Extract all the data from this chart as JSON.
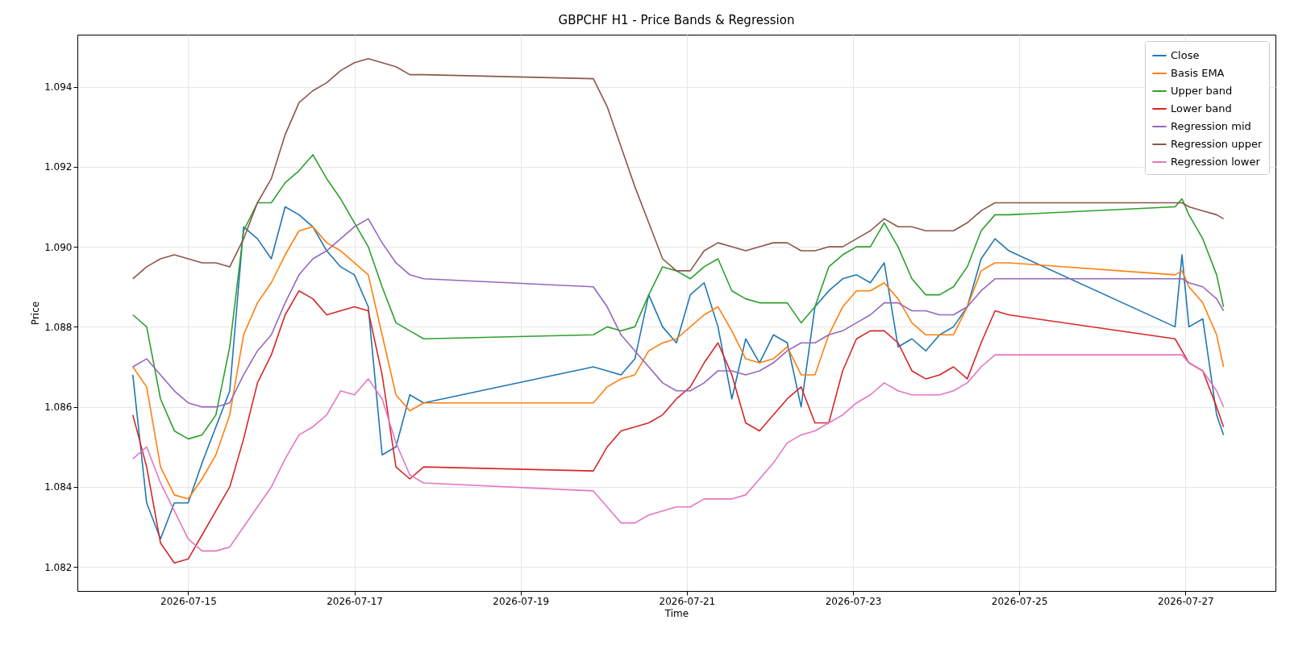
{
  "chart_data": {
    "type": "line",
    "title": "GBPCHF H1 - Price Bands & Regression",
    "xlabel": "Time",
    "ylabel": "Price",
    "x": [
      "2026-07-14T08:00",
      "2026-07-14T12:00",
      "2026-07-14T16:00",
      "2026-07-14T20:00",
      "2026-07-15T00:00",
      "2026-07-15T04:00",
      "2026-07-15T08:00",
      "2026-07-15T12:00",
      "2026-07-15T16:00",
      "2026-07-15T20:00",
      "2026-07-16T00:00",
      "2026-07-16T04:00",
      "2026-07-16T08:00",
      "2026-07-16T12:00",
      "2026-07-16T16:00",
      "2026-07-16T20:00",
      "2026-07-17T00:00",
      "2026-07-17T04:00",
      "2026-07-17T08:00",
      "2026-07-17T12:00",
      "2026-07-17T16:00",
      "2026-07-17T20:00",
      "2026-07-19T21:00",
      "2026-07-20T01:00",
      "2026-07-20T05:00",
      "2026-07-20T09:00",
      "2026-07-20T13:00",
      "2026-07-20T17:00",
      "2026-07-20T21:00",
      "2026-07-21T01:00",
      "2026-07-21T05:00",
      "2026-07-21T09:00",
      "2026-07-21T13:00",
      "2026-07-21T17:00",
      "2026-07-21T21:00",
      "2026-07-22T01:00",
      "2026-07-22T05:00",
      "2026-07-22T09:00",
      "2026-07-22T13:00",
      "2026-07-22T17:00",
      "2026-07-22T21:00",
      "2026-07-23T01:00",
      "2026-07-23T05:00",
      "2026-07-23T09:00",
      "2026-07-23T13:00",
      "2026-07-23T17:00",
      "2026-07-23T21:00",
      "2026-07-24T01:00",
      "2026-07-24T05:00",
      "2026-07-24T09:00",
      "2026-07-24T13:00",
      "2026-07-24T17:00",
      "2026-07-24T21:00",
      "2026-07-26T21:00",
      "2026-07-26T23:00",
      "2026-07-27T01:00",
      "2026-07-27T05:00",
      "2026-07-27T09:00",
      "2026-07-27T11:00"
    ],
    "series": [
      {
        "name": "Close",
        "color": "#1f77b4",
        "values": [
          1.0868,
          1.0836,
          1.0827,
          1.0836,
          1.0836,
          1.0846,
          1.0855,
          1.0864,
          1.0905,
          1.0902,
          1.0897,
          1.091,
          1.0908,
          1.0905,
          1.0899,
          1.0895,
          1.0893,
          1.0885,
          1.0848,
          1.085,
          1.0863,
          1.0861,
          1.087,
          1.0869,
          1.0868,
          1.0872,
          1.0888,
          1.088,
          1.0876,
          1.0888,
          1.0891,
          1.088,
          1.0862,
          1.0877,
          1.0871,
          1.0878,
          1.0876,
          1.086,
          1.0885,
          1.0889,
          1.0892,
          1.0893,
          1.0891,
          1.0896,
          1.0875,
          1.0877,
          1.0874,
          1.0878,
          1.088,
          1.0885,
          1.0897,
          1.0902,
          1.0899,
          1.088,
          1.0898,
          1.088,
          1.0882,
          1.0858,
          1.0853
        ]
      },
      {
        "name": "Basis EMA",
        "color": "#ff7f0e",
        "values": [
          1.087,
          1.0865,
          1.0845,
          1.0838,
          1.0837,
          1.0842,
          1.0848,
          1.0858,
          1.0878,
          1.0886,
          1.0891,
          1.0898,
          1.0904,
          1.0905,
          1.0901,
          1.0899,
          1.0896,
          1.0893,
          1.0878,
          1.0863,
          1.0859,
          1.0861,
          1.0861,
          1.0865,
          1.0867,
          1.0868,
          1.0874,
          1.0876,
          1.0877,
          1.088,
          1.0883,
          1.0885,
          1.0879,
          1.0872,
          1.0871,
          1.0872,
          1.0875,
          1.0868,
          1.0868,
          1.0878,
          1.0885,
          1.0889,
          1.0889,
          1.0891,
          1.0887,
          1.0881,
          1.0878,
          1.0878,
          1.0878,
          1.0885,
          1.0894,
          1.0896,
          1.0896,
          1.0893,
          1.0894,
          1.089,
          1.0886,
          1.0878,
          1.087
        ]
      },
      {
        "name": "Upper band",
        "color": "#2ca02c",
        "values": [
          1.0883,
          1.088,
          1.0862,
          1.0854,
          1.0852,
          1.0853,
          1.0858,
          1.0875,
          1.0904,
          1.0911,
          1.0911,
          1.0916,
          1.0919,
          1.0923,
          1.0917,
          1.0912,
          1.0906,
          1.09,
          1.089,
          1.0881,
          1.0879,
          1.0877,
          1.0878,
          1.088,
          1.0879,
          1.088,
          1.0888,
          1.0895,
          1.0894,
          1.0892,
          1.0895,
          1.0897,
          1.0889,
          1.0887,
          1.0886,
          1.0886,
          1.0886,
          1.0881,
          1.0885,
          1.0895,
          1.0898,
          1.09,
          1.09,
          1.0906,
          1.09,
          1.0892,
          1.0888,
          1.0888,
          1.089,
          1.0895,
          1.0904,
          1.0908,
          1.0908,
          1.091,
          1.0912,
          1.0908,
          1.0902,
          1.0893,
          1.0885
        ]
      },
      {
        "name": "Lower band",
        "color": "#d62728",
        "values": [
          1.0858,
          1.0845,
          1.0826,
          1.0821,
          1.0822,
          1.0828,
          1.0834,
          1.084,
          1.0852,
          1.0866,
          1.0873,
          1.0883,
          1.0889,
          1.0887,
          1.0883,
          1.0884,
          1.0885,
          1.0884,
          1.0868,
          1.0845,
          1.0842,
          1.0845,
          1.0844,
          1.085,
          1.0854,
          1.0855,
          1.0856,
          1.0858,
          1.0862,
          1.0865,
          1.0871,
          1.0876,
          1.0868,
          1.0856,
          1.0854,
          1.0858,
          1.0862,
          1.0865,
          1.0856,
          1.0856,
          1.0869,
          1.0877,
          1.0879,
          1.0879,
          1.0876,
          1.0869,
          1.0867,
          1.0868,
          1.087,
          1.0867,
          1.0876,
          1.0884,
          1.0883,
          1.0877,
          1.0874,
          1.0871,
          1.0869,
          1.086,
          1.0855
        ]
      },
      {
        "name": "Regression mid",
        "color": "#9467bd",
        "values": [
          1.087,
          1.0872,
          1.0868,
          1.0864,
          1.0861,
          1.086,
          1.086,
          1.0861,
          1.0868,
          1.0874,
          1.0878,
          1.0886,
          1.0893,
          1.0897,
          1.0899,
          1.0902,
          1.0905,
          1.0907,
          1.0901,
          1.0896,
          1.0893,
          1.0892,
          1.089,
          1.0885,
          1.0878,
          1.0874,
          1.087,
          1.0866,
          1.0864,
          1.0864,
          1.0866,
          1.0869,
          1.0869,
          1.0868,
          1.0869,
          1.0871,
          1.0874,
          1.0876,
          1.0876,
          1.0878,
          1.0879,
          1.0881,
          1.0883,
          1.0886,
          1.0886,
          1.0884,
          1.0884,
          1.0883,
          1.0883,
          1.0885,
          1.0889,
          1.0892,
          1.0892,
          1.0892,
          1.0892,
          1.0891,
          1.089,
          1.0887,
          1.0884
        ]
      },
      {
        "name": "Regression upper",
        "color": "#8c564b",
        "values": [
          1.0892,
          1.0895,
          1.0897,
          1.0898,
          1.0897,
          1.0896,
          1.0896,
          1.0895,
          1.0902,
          1.0911,
          1.0917,
          1.0928,
          1.0936,
          1.0939,
          1.0941,
          1.0944,
          1.0946,
          1.0947,
          1.0946,
          1.0945,
          1.0943,
          1.0943,
          1.0942,
          1.0935,
          1.0925,
          1.0915,
          1.0906,
          1.0897,
          1.0894,
          1.0894,
          1.0899,
          1.0901,
          1.09,
          1.0899,
          1.09,
          1.0901,
          1.0901,
          1.0899,
          1.0899,
          1.09,
          1.09,
          1.0902,
          1.0904,
          1.0907,
          1.0905,
          1.0905,
          1.0904,
          1.0904,
          1.0904,
          1.0906,
          1.0909,
          1.0911,
          1.0911,
          1.0911,
          1.0911,
          1.091,
          1.0909,
          1.0908,
          1.0907
        ]
      },
      {
        "name": "Regression lower",
        "color": "#e377c2",
        "values": [
          1.0847,
          1.085,
          1.0841,
          1.0834,
          1.0827,
          1.0824,
          1.0824,
          1.0825,
          1.083,
          1.0835,
          1.084,
          1.0847,
          1.0853,
          1.0855,
          1.0858,
          1.0864,
          1.0863,
          1.0867,
          1.0862,
          1.0851,
          1.0843,
          1.0841,
          1.0839,
          1.0835,
          1.0831,
          1.0831,
          1.0833,
          1.0834,
          1.0835,
          1.0835,
          1.0837,
          1.0837,
          1.0837,
          1.0838,
          1.0842,
          1.0846,
          1.0851,
          1.0853,
          1.0854,
          1.0856,
          1.0858,
          1.0861,
          1.0863,
          1.0866,
          1.0864,
          1.0863,
          1.0863,
          1.0863,
          1.0864,
          1.0866,
          1.087,
          1.0873,
          1.0873,
          1.0873,
          1.0873,
          1.0871,
          1.0869,
          1.0864,
          1.086
        ]
      }
    ],
    "xlim": [
      "2026-07-13T16:00",
      "2026-07-28T02:00"
    ],
    "xticks": [
      "2026-07-15",
      "2026-07-17",
      "2026-07-19",
      "2026-07-21",
      "2026-07-23",
      "2026-07-25",
      "2026-07-27"
    ],
    "ylim": [
      1.0814,
      1.0953
    ],
    "yticks": [
      1.082,
      1.084,
      1.086,
      1.088,
      {
        "value": 1.09,
        "label": "1.090"
      },
      1.092,
      1.094
    ],
    "grid": true,
    "legend": "top right"
  }
}
